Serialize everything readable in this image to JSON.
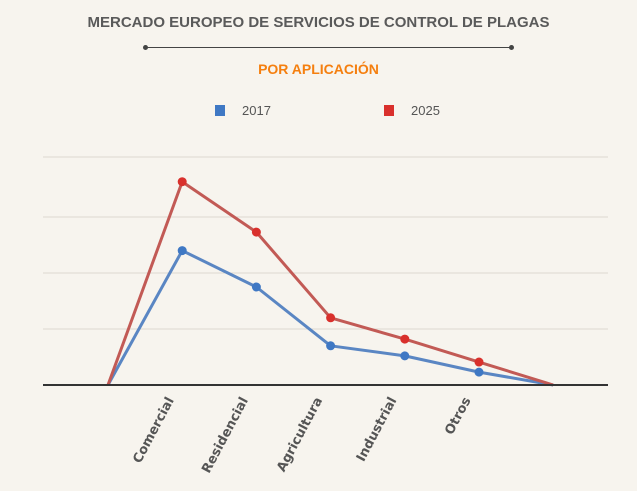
{
  "header": {
    "title": "MERCADO EUROPEO DE SERVICIOS DE CONTROL DE PLAGAS",
    "subtitle": "POR APLICACIÓN"
  },
  "chart_data": {
    "type": "line",
    "title": "MERCADO EUROPEO DE SERVICIOS DE CONTROL DE PLAGAS",
    "subtitle": "POR APLICACIÓN",
    "xlabel": "",
    "ylabel": "",
    "categories": [
      "",
      "Comercial",
      "Residencial",
      "Agricultura",
      "Industrial",
      "Otros",
      ""
    ],
    "ylim": [
      0,
      4
    ],
    "grid": true,
    "y_tick_labels_shown": false,
    "legend_position": "top",
    "series": [
      {
        "name": "2017",
        "color": "#3f78c4",
        "line_color": "#5a86c3",
        "values": [
          0,
          2.4,
          1.75,
          0.7,
          0.52,
          0.23,
          0
        ]
      },
      {
        "name": "2025",
        "color": "#d9302c",
        "line_color": "#c25a55",
        "values": [
          0,
          3.63,
          2.73,
          1.2,
          0.82,
          0.41,
          0
        ]
      }
    ]
  }
}
